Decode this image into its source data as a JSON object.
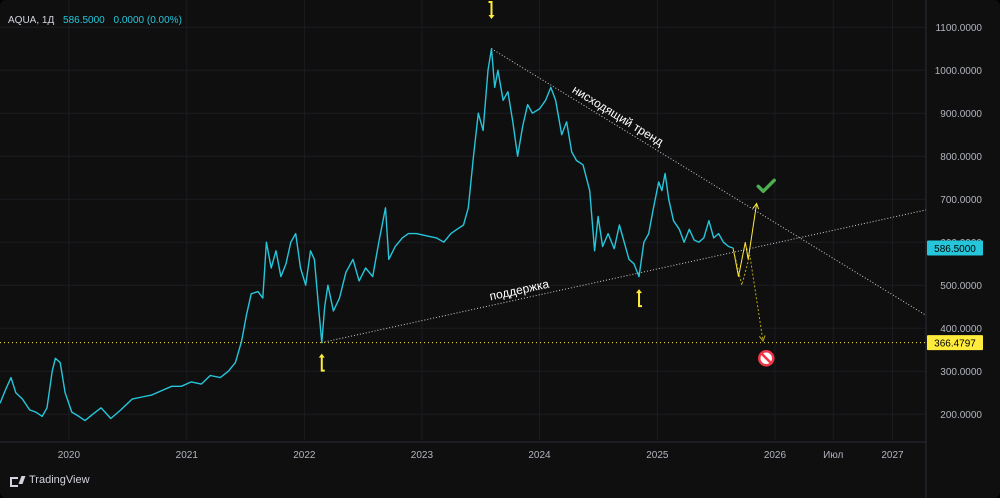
{
  "header": {
    "symbol": "AQUA, 1Д",
    "price": "586.5000",
    "change": "0.0000 (0.00%)"
  },
  "branding": {
    "name": "TradingView",
    "icon": "tradingview-logo-icon"
  },
  "chart_data": {
    "type": "line",
    "series": [
      {
        "color": "#26c6da",
        "points": [
          [
            "2019-06-01",
            225
          ],
          [
            "2019-06-20",
            260
          ],
          [
            "2019-07-05",
            285
          ],
          [
            "2019-07-20",
            250
          ],
          [
            "2019-08-10",
            235
          ],
          [
            "2019-09-01",
            210
          ],
          [
            "2019-09-20",
            205
          ],
          [
            "2019-10-10",
            195
          ],
          [
            "2019-10-25",
            215
          ],
          [
            "2019-11-10",
            300
          ],
          [
            "2019-11-20",
            330
          ],
          [
            "2019-12-05",
            320
          ],
          [
            "2019-12-20",
            250
          ],
          [
            "2020-01-10",
            205
          ],
          [
            "2020-02-01",
            195
          ],
          [
            "2020-02-20",
            185
          ],
          [
            "2020-03-15",
            200
          ],
          [
            "2020-04-10",
            215
          ],
          [
            "2020-05-10",
            190
          ],
          [
            "2020-06-10",
            210
          ],
          [
            "2020-07-15",
            235
          ],
          [
            "2020-08-15",
            240
          ],
          [
            "2020-09-15",
            245
          ],
          [
            "2020-10-15",
            255
          ],
          [
            "2020-11-15",
            265
          ],
          [
            "2020-12-15",
            265
          ],
          [
            "2021-01-15",
            275
          ],
          [
            "2021-02-15",
            270
          ],
          [
            "2021-03-15",
            290
          ],
          [
            "2021-04-15",
            285
          ],
          [
            "2021-05-10",
            300
          ],
          [
            "2021-06-01",
            320
          ],
          [
            "2021-06-20",
            370
          ],
          [
            "2021-07-05",
            430
          ],
          [
            "2021-07-20",
            480
          ],
          [
            "2021-08-10",
            485
          ],
          [
            "2021-08-25",
            470
          ],
          [
            "2021-09-05",
            600
          ],
          [
            "2021-09-20",
            540
          ],
          [
            "2021-10-05",
            580
          ],
          [
            "2021-10-20",
            520
          ],
          [
            "2021-11-05",
            550
          ],
          [
            "2021-11-20",
            600
          ],
          [
            "2021-12-05",
            620
          ],
          [
            "2021-12-20",
            540
          ],
          [
            "2022-01-05",
            500
          ],
          [
            "2022-01-20",
            580
          ],
          [
            "2022-02-01",
            560
          ],
          [
            "2022-02-15",
            440
          ],
          [
            "2022-02-24",
            366.5
          ],
          [
            "2022-03-05",
            450
          ],
          [
            "2022-03-15",
            500
          ],
          [
            "2022-04-01",
            440
          ],
          [
            "2022-04-20",
            470
          ],
          [
            "2022-05-10",
            530
          ],
          [
            "2022-06-01",
            560
          ],
          [
            "2022-06-20",
            510
          ],
          [
            "2022-07-10",
            540
          ],
          [
            "2022-08-01",
            520
          ],
          [
            "2022-08-20",
            600
          ],
          [
            "2022-09-10",
            680
          ],
          [
            "2022-09-20",
            560
          ],
          [
            "2022-10-10",
            590
          ],
          [
            "2022-11-01",
            610
          ],
          [
            "2022-11-20",
            620
          ],
          [
            "2022-12-15",
            620
          ],
          [
            "2023-01-15",
            615
          ],
          [
            "2023-02-15",
            610
          ],
          [
            "2023-03-10",
            600
          ],
          [
            "2023-04-01",
            620
          ],
          [
            "2023-04-20",
            630
          ],
          [
            "2023-05-10",
            640
          ],
          [
            "2023-05-25",
            680
          ],
          [
            "2023-06-10",
            800
          ],
          [
            "2023-06-25",
            900
          ],
          [
            "2023-07-10",
            860
          ],
          [
            "2023-07-25",
            1000
          ],
          [
            "2023-08-05",
            1050
          ],
          [
            "2023-08-15",
            960
          ],
          [
            "2023-08-25",
            1000
          ],
          [
            "2023-09-10",
            930
          ],
          [
            "2023-09-25",
            950
          ],
          [
            "2023-10-10",
            880
          ],
          [
            "2023-10-25",
            800
          ],
          [
            "2023-11-10",
            870
          ],
          [
            "2023-11-25",
            920
          ],
          [
            "2023-12-10",
            900
          ],
          [
            "2024-01-01",
            910
          ],
          [
            "2024-01-20",
            930
          ],
          [
            "2024-02-05",
            960
          ],
          [
            "2024-02-20",
            930
          ],
          [
            "2024-03-10",
            850
          ],
          [
            "2024-03-25",
            880
          ],
          [
            "2024-04-10",
            810
          ],
          [
            "2024-04-25",
            790
          ],
          [
            "2024-05-15",
            780
          ],
          [
            "2024-06-05",
            720
          ],
          [
            "2024-06-20",
            580
          ],
          [
            "2024-07-01",
            660
          ],
          [
            "2024-07-15",
            590
          ],
          [
            "2024-08-01",
            620
          ],
          [
            "2024-08-20",
            585
          ],
          [
            "2024-09-05",
            640
          ],
          [
            "2024-09-20",
            600
          ],
          [
            "2024-10-05",
            560
          ],
          [
            "2024-10-20",
            550
          ],
          [
            "2024-11-05",
            520
          ],
          [
            "2024-11-20",
            600
          ],
          [
            "2024-12-05",
            620
          ],
          [
            "2024-12-20",
            680
          ],
          [
            "2025-01-05",
            740
          ],
          [
            "2025-01-15",
            720
          ],
          [
            "2025-01-25",
            760
          ],
          [
            "2025-02-05",
            700
          ],
          [
            "2025-02-20",
            650
          ],
          [
            "2025-03-10",
            630
          ],
          [
            "2025-03-25",
            600
          ],
          [
            "2025-04-10",
            630
          ],
          [
            "2025-04-25",
            605
          ],
          [
            "2025-05-10",
            600
          ],
          [
            "2025-05-25",
            610
          ],
          [
            "2025-06-10",
            650
          ],
          [
            "2025-06-25",
            610
          ],
          [
            "2025-07-10",
            620
          ],
          [
            "2025-07-25",
            600
          ],
          [
            "2025-08-10",
            590
          ],
          [
            "2025-08-24",
            586.5
          ]
        ]
      }
    ],
    "x_range": [
      "2019-06-01",
      "2027-04-15"
    ],
    "ylim": [
      140,
      1140
    ],
    "x_ticks": [
      {
        "label": "2020",
        "date": "2020-01-01"
      },
      {
        "label": "2021",
        "date": "2021-01-01"
      },
      {
        "label": "2022",
        "date": "2022-01-01"
      },
      {
        "label": "2023",
        "date": "2023-01-01"
      },
      {
        "label": "2024",
        "date": "2024-01-01"
      },
      {
        "label": "2025",
        "date": "2025-01-01"
      },
      {
        "label": "2026",
        "date": "2026-01-01"
      },
      {
        "label": "Июл",
        "date": "2026-07-01"
      },
      {
        "label": "2027",
        "date": "2027-01-01"
      }
    ],
    "y_ticks": [
      {
        "label": "1100.0000",
        "value": 1100
      },
      {
        "label": "1000.0000",
        "value": 1000
      },
      {
        "label": "900.0000",
        "value": 900
      },
      {
        "label": "800.0000",
        "value": 800
      },
      {
        "label": "700.0000",
        "value": 700
      },
      {
        "label": "600.0000",
        "value": 600
      },
      {
        "label": "500.0000",
        "value": 500
      },
      {
        "label": "400.0000",
        "value": 400
      },
      {
        "label": "300.0000",
        "value": 300
      },
      {
        "label": "200.0000",
        "value": 200
      }
    ],
    "price_tags": [
      {
        "label": "586.5000",
        "value": 586.5,
        "bg": "#26c6da",
        "fg": "#000000"
      },
      {
        "label": "366.4797",
        "value": 366.4797,
        "bg": "#ffeb3b",
        "fg": "#000000"
      }
    ],
    "level_line": {
      "value": 366.4797,
      "color": "#ffeb3b"
    },
    "trend_lines": [
      {
        "name": "нисходящий тренд",
        "from": [
          "2023-08-05",
          1050
        ],
        "to": [
          "2027-04-15",
          430
        ],
        "color": "#cfcfcf",
        "label_at": 0.28
      },
      {
        "name": "поддержка",
        "from": [
          "2022-02-24",
          366.5
        ],
        "to": [
          "2027-04-15",
          675
        ],
        "color": "#cfcfcf",
        "label_at": 0.33
      }
    ],
    "projections": [
      {
        "outcome": "up",
        "color": "#ffeb3b",
        "points": [
          [
            "2025-08-24",
            586.5
          ],
          [
            "2025-09-10",
            520
          ],
          [
            "2025-10-01",
            600
          ],
          [
            "2025-10-10",
            560
          ],
          [
            "2025-11-05",
            690
          ]
        ]
      },
      {
        "outcome": "down",
        "color": "#b9a718",
        "points": [
          [
            "2025-08-24",
            586.5
          ],
          [
            "2025-09-20",
            500
          ],
          [
            "2025-10-15",
            570
          ],
          [
            "2025-11-25",
            370
          ]
        ]
      }
    ],
    "markers": [
      {
        "icon": "arrow-down-icon",
        "date": "2023-08-05",
        "value": 1140,
        "color": "#ffeb3b"
      },
      {
        "icon": "arrow-up-icon",
        "date": "2022-02-24",
        "value": 320,
        "color": "#ffeb3b"
      },
      {
        "icon": "arrow-up-icon",
        "date": "2024-11-05",
        "value": 470,
        "color": "#ffeb3b"
      },
      {
        "icon": "checkmark-icon",
        "date": "2025-12-05",
        "value": 730,
        "color": "#4caf50"
      },
      {
        "icon": "no-entry-icon",
        "date": "2025-12-05",
        "value": 330,
        "color": "#f23645"
      }
    ]
  }
}
